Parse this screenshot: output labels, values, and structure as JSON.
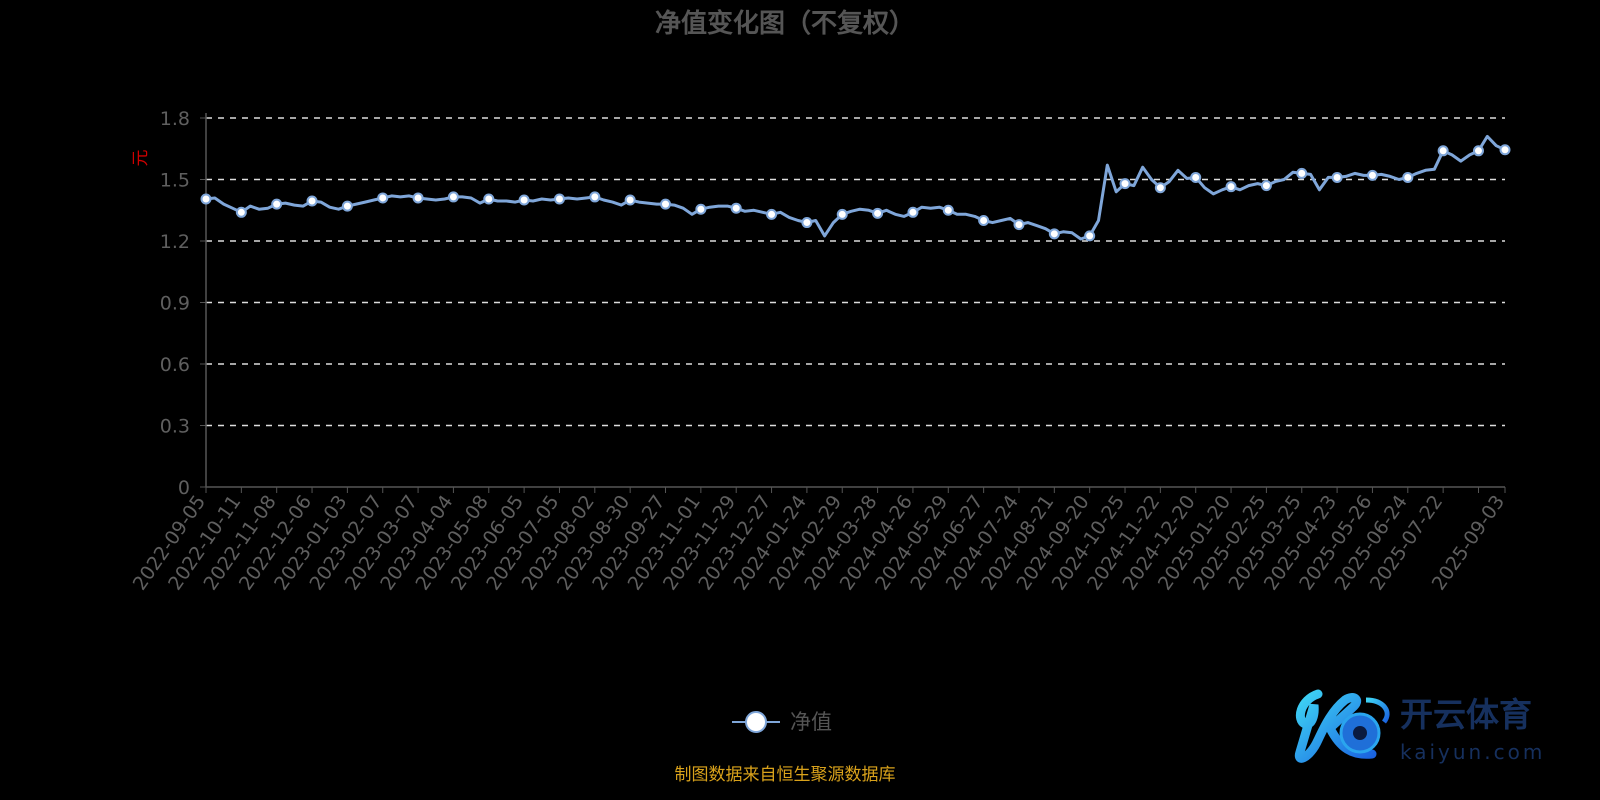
{
  "chart_data": {
    "type": "line",
    "title": "净值变化图（不复权）",
    "ylabel": "元",
    "ylim": [
      0,
      1.8
    ],
    "yticks": [
      0,
      0.3,
      0.6,
      0.9,
      1.2,
      1.5,
      1.8
    ],
    "grid": "horizontal dashed",
    "legend": "bottom-center",
    "series_color": "#7fa6d9",
    "x_ticks": [
      "2022-09-05",
      "2022-10-11",
      "2022-11-08",
      "2022-12-06",
      "2023-01-03",
      "2023-02-07",
      "2023-03-07",
      "2023-04-04",
      "2023-05-08",
      "2023-06-05",
      "2023-07-05",
      "2023-08-02",
      "2023-08-30",
      "2023-09-27",
      "2023-11-01",
      "2023-11-29",
      "2023-12-27",
      "2024-01-24",
      "2024-02-29",
      "2024-03-28",
      "2024-04-26",
      "2024-05-29",
      "2024-06-27",
      "2024-07-24",
      "2024-08-21",
      "2024-09-20",
      "2024-10-25",
      "2024-11-22",
      "2024-12-20",
      "2025-01-20",
      "2025-02-25",
      "2025-03-25",
      "2025-04-23",
      "2025-05-26",
      "2025-06-24",
      "2025-07-22",
      "",
      "2025-09-03"
    ],
    "series": [
      {
        "name": "净值",
        "values": [
          1.405,
          1.41,
          1.38,
          1.36,
          1.34,
          1.37,
          1.355,
          1.36,
          1.38,
          1.385,
          1.375,
          1.37,
          1.395,
          1.39,
          1.365,
          1.355,
          1.37,
          1.38,
          1.39,
          1.4,
          1.41,
          1.42,
          1.415,
          1.42,
          1.41,
          1.405,
          1.4,
          1.405,
          1.415,
          1.415,
          1.41,
          1.385,
          1.405,
          1.395,
          1.395,
          1.39,
          1.4,
          1.395,
          1.405,
          1.4,
          1.405,
          1.41,
          1.405,
          1.41,
          1.415,
          1.4,
          1.39,
          1.375,
          1.4,
          1.39,
          1.385,
          1.38,
          1.38,
          1.375,
          1.36,
          1.33,
          1.355,
          1.365,
          1.37,
          1.37,
          1.36,
          1.345,
          1.35,
          1.34,
          1.33,
          1.34,
          1.315,
          1.3,
          1.29,
          1.3,
          1.225,
          1.29,
          1.33,
          1.345,
          1.355,
          1.35,
          1.335,
          1.35,
          1.33,
          1.32,
          1.34,
          1.365,
          1.36,
          1.365,
          1.35,
          1.33,
          1.33,
          1.32,
          1.3,
          1.29,
          1.3,
          1.31,
          1.28,
          1.29,
          1.275,
          1.26,
          1.235,
          1.245,
          1.24,
          1.21,
          1.225,
          1.3,
          1.57,
          1.44,
          1.48,
          1.47,
          1.56,
          1.5,
          1.46,
          1.49,
          1.545,
          1.505,
          1.51,
          1.46,
          1.43,
          1.45,
          1.465,
          1.45,
          1.47,
          1.48,
          1.47,
          1.49,
          1.5,
          1.535,
          1.53,
          1.525,
          1.45,
          1.51,
          1.51,
          1.515,
          1.53,
          1.52,
          1.52,
          1.525,
          1.515,
          1.5,
          1.51,
          1.53,
          1.545,
          1.55,
          1.64,
          1.62,
          1.59,
          1.62,
          1.64,
          1.71,
          1.665,
          1.645
        ]
      }
    ]
  },
  "footer": "制图数据来自恒生聚源数据库",
  "logo": {
    "brand": "开云体育",
    "domain": "kaiyun.com"
  }
}
